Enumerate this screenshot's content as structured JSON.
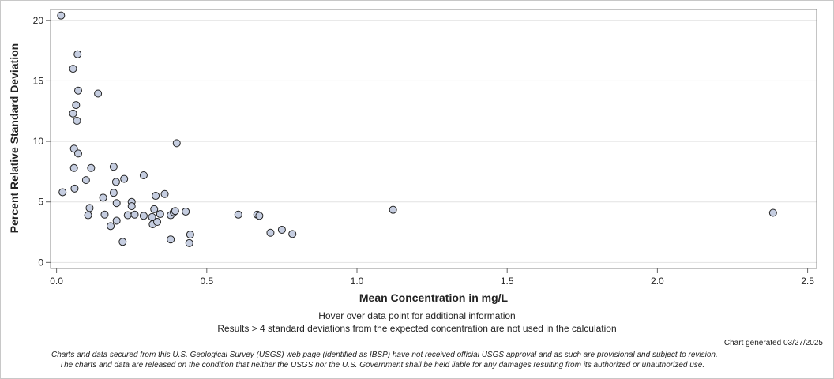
{
  "notes": {
    "hover": "Hover over data point for additional information",
    "exclusion": "Results > 4 standard deviations from the expected concentration are not used in the calculation",
    "generated": "Chart generated 03/27/2025",
    "disclaimer_line1": "Charts and data secured from this U.S. Geological Survey (USGS) web page (identified as IBSP) have not received official USGS approval and as such are provisional and subject to revision.",
    "disclaimer_line2": "The charts and data are released on the condition that neither the USGS nor the U.S. Government shall be held liable for any damages resulting from its authorized or unauthorized use."
  },
  "chart_data": {
    "type": "scatter",
    "title": "",
    "xlabel": "Mean Concentration in mg/L",
    "ylabel": "Percent Relative Standard Deviation",
    "xlim": [
      -0.02,
      2.53
    ],
    "ylim": [
      -0.5,
      20.9
    ],
    "x_ticks": [
      0,
      0.5,
      1.0,
      1.5,
      2.0,
      2.5
    ],
    "x_tick_labels": [
      "0.0",
      "0.5",
      "1.0",
      "1.5",
      "2.0",
      "2.5"
    ],
    "y_ticks": [
      0,
      5,
      10,
      15,
      20
    ],
    "y_tick_labels": [
      "0",
      "5",
      "10",
      "15",
      "20"
    ],
    "grid": "horizontal",
    "marker_fill": "#c5cde0",
    "marker_stroke": "#222222",
    "points": [
      {
        "x": 0.015,
        "y": 20.4
      },
      {
        "x": 0.02,
        "y": 5.8
      },
      {
        "x": 0.055,
        "y": 16.0
      },
      {
        "x": 0.055,
        "y": 12.3
      },
      {
        "x": 0.058,
        "y": 9.4
      },
      {
        "x": 0.058,
        "y": 7.8
      },
      {
        "x": 0.06,
        "y": 6.1
      },
      {
        "x": 0.065,
        "y": 13.0
      },
      {
        "x": 0.068,
        "y": 11.7
      },
      {
        "x": 0.07,
        "y": 17.2
      },
      {
        "x": 0.072,
        "y": 14.2
      },
      {
        "x": 0.072,
        "y": 9.0
      },
      {
        "x": 0.098,
        "y": 6.8
      },
      {
        "x": 0.105,
        "y": 3.9
      },
      {
        "x": 0.11,
        "y": 4.5
      },
      {
        "x": 0.115,
        "y": 7.8
      },
      {
        "x": 0.138,
        "y": 13.95
      },
      {
        "x": 0.155,
        "y": 5.35
      },
      {
        "x": 0.16,
        "y": 3.95
      },
      {
        "x": 0.18,
        "y": 3.0
      },
      {
        "x": 0.19,
        "y": 7.9
      },
      {
        "x": 0.19,
        "y": 5.75
      },
      {
        "x": 0.198,
        "y": 6.65
      },
      {
        "x": 0.2,
        "y": 4.9
      },
      {
        "x": 0.2,
        "y": 3.45
      },
      {
        "x": 0.22,
        "y": 1.7
      },
      {
        "x": 0.225,
        "y": 6.9
      },
      {
        "x": 0.237,
        "y": 3.9
      },
      {
        "x": 0.25,
        "y": 5.0
      },
      {
        "x": 0.25,
        "y": 4.65
      },
      {
        "x": 0.26,
        "y": 3.95
      },
      {
        "x": 0.29,
        "y": 7.2
      },
      {
        "x": 0.29,
        "y": 3.85
      },
      {
        "x": 0.318,
        "y": 3.75
      },
      {
        "x": 0.32,
        "y": 3.15
      },
      {
        "x": 0.325,
        "y": 4.4
      },
      {
        "x": 0.33,
        "y": 5.5
      },
      {
        "x": 0.335,
        "y": 3.35
      },
      {
        "x": 0.345,
        "y": 4.0
      },
      {
        "x": 0.36,
        "y": 5.65
      },
      {
        "x": 0.38,
        "y": 3.9
      },
      {
        "x": 0.38,
        "y": 1.9
      },
      {
        "x": 0.39,
        "y": 4.15
      },
      {
        "x": 0.395,
        "y": 4.25
      },
      {
        "x": 0.4,
        "y": 9.85
      },
      {
        "x": 0.43,
        "y": 4.2
      },
      {
        "x": 0.445,
        "y": 2.3
      },
      {
        "x": 0.442,
        "y": 1.6
      },
      {
        "x": 0.605,
        "y": 3.95
      },
      {
        "x": 0.668,
        "y": 3.95
      },
      {
        "x": 0.675,
        "y": 3.85
      },
      {
        "x": 0.712,
        "y": 2.45
      },
      {
        "x": 0.75,
        "y": 2.7
      },
      {
        "x": 0.785,
        "y": 2.35
      },
      {
        "x": 1.12,
        "y": 4.35
      },
      {
        "x": 2.385,
        "y": 4.1
      }
    ]
  }
}
